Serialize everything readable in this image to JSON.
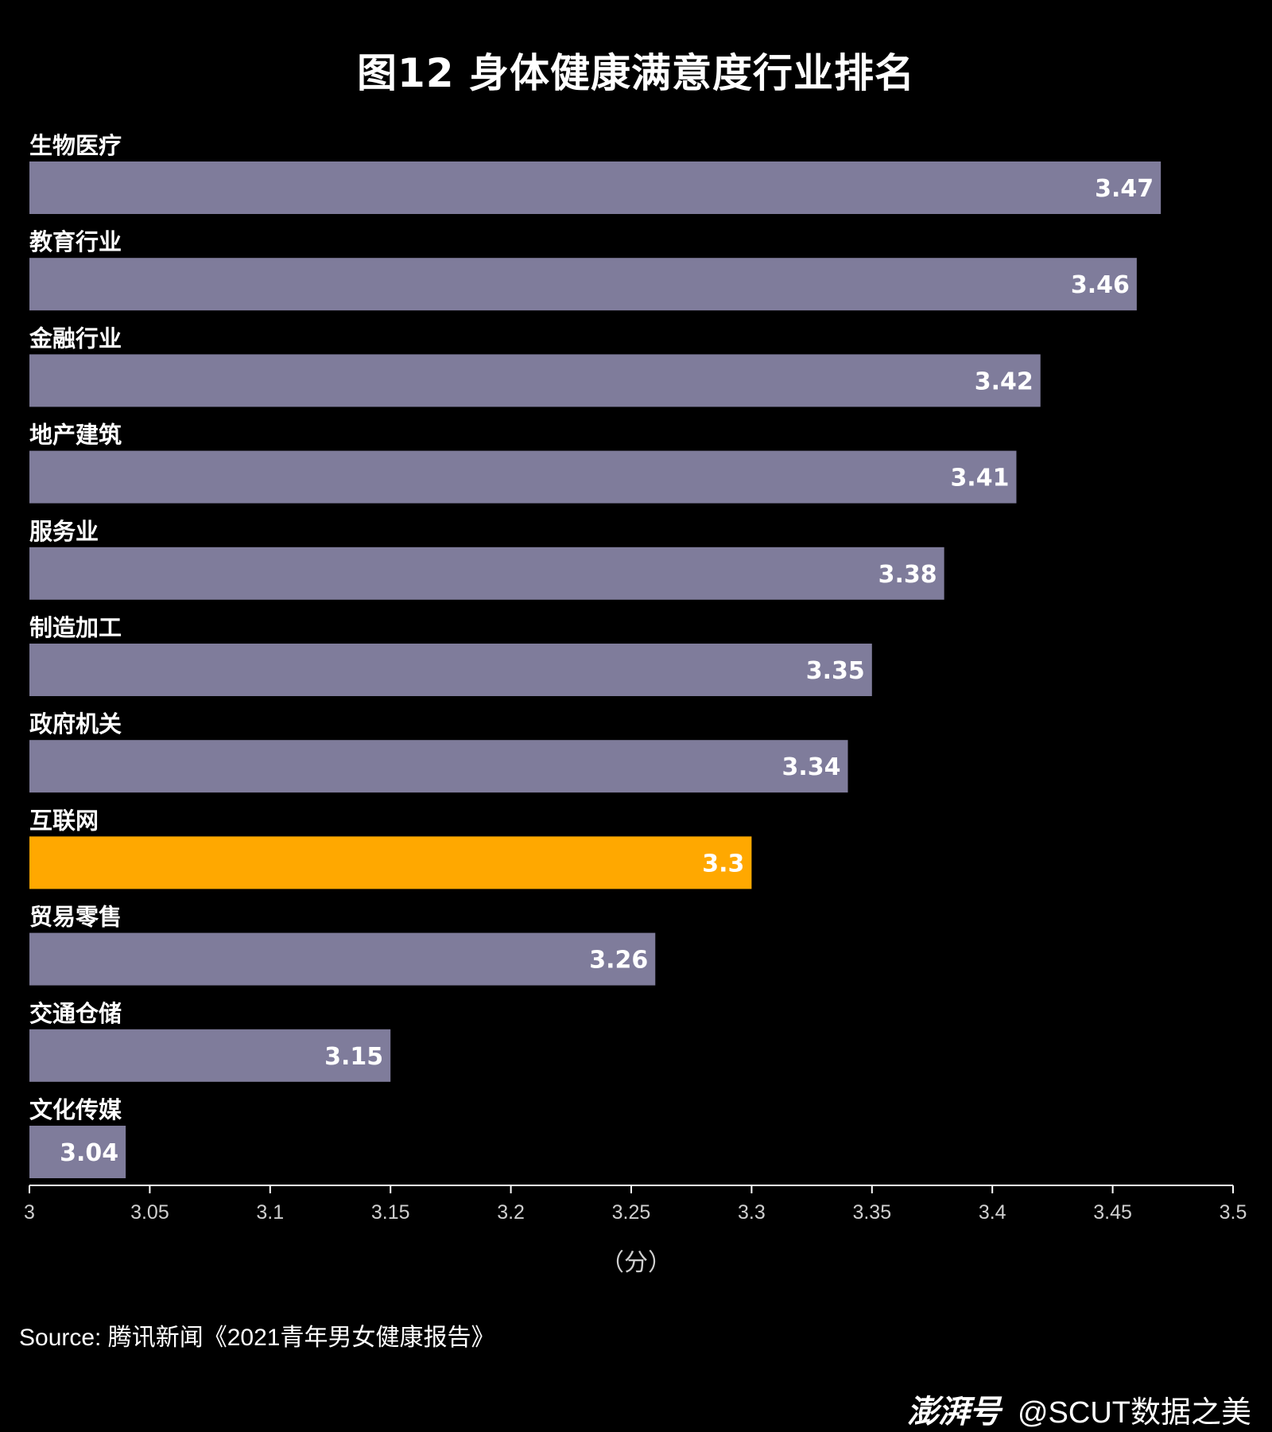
{
  "chart_data": {
    "type": "bar",
    "orientation": "horizontal",
    "title": "图12 身体健康满意度行业排名",
    "xlabel": "（分）",
    "xlim": [
      3,
      3.5
    ],
    "xticks": [
      "3",
      "3.05",
      "3.1",
      "3.15",
      "3.2",
      "3.25",
      "3.3",
      "3.35",
      "3.4",
      "3.45",
      "3.5"
    ],
    "categories": [
      "生物医疗",
      "教育行业",
      "金融行业",
      "地产建筑",
      "服务业",
      "制造加工",
      "政府机关",
      "互联网",
      "贸易零售",
      "交通仓储",
      "文化传媒"
    ],
    "values": [
      3.47,
      3.46,
      3.42,
      3.41,
      3.38,
      3.35,
      3.34,
      3.3,
      3.26,
      3.15,
      3.04
    ],
    "value_labels": [
      "3.47",
      "3.46",
      "3.42",
      "3.41",
      "3.38",
      "3.35",
      "3.34",
      "3.3",
      "3.26",
      "3.15",
      "3.04"
    ],
    "highlight_category": "互联网",
    "colors": {
      "default_bar": "#7f7c9b",
      "highlight_bar": "#ffa800",
      "background": "#000000",
      "axis": "#ffffff"
    },
    "grid": false,
    "legend": "none"
  },
  "source": "Source: 腾讯新闻《2021青年男女健康报告》",
  "watermark": {
    "logo": "澎湃号",
    "handle": "@SCUT数据之美"
  }
}
